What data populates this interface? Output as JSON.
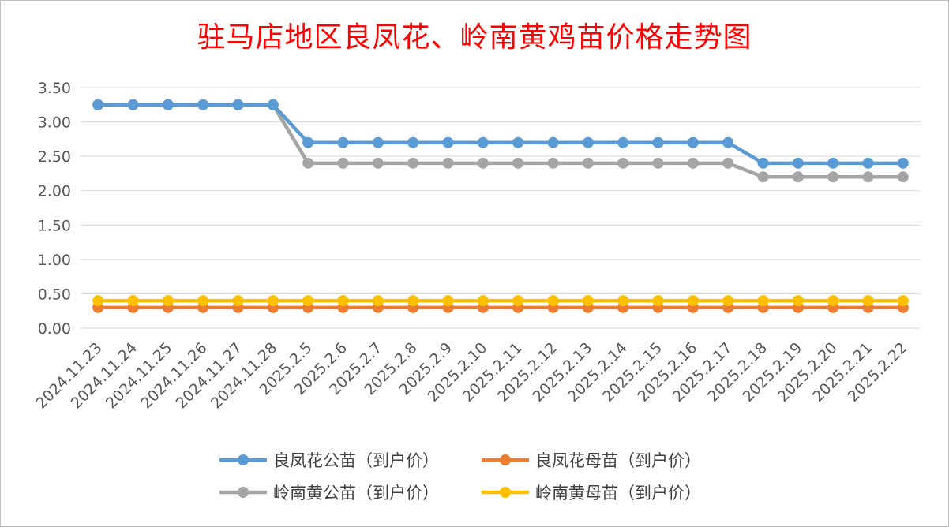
{
  "chart_data": {
    "type": "line",
    "title": "驻马店地区良凤花、岭南黄鸡苗价格走势图",
    "categories": [
      "2024.11.23",
      "2024.11.24",
      "2024.11.25",
      "2024.11.26",
      "2024.11.27",
      "2024.11.28",
      "2025.2.5",
      "2025.2.6",
      "2025.2.7",
      "2025.2.8",
      "2025.2.9",
      "2025.2.10",
      "2025.2.11",
      "2025.2.12",
      "2025.2.13",
      "2025.2.14",
      "2025.2.15",
      "2025.2.16",
      "2025.2.17",
      "2025.2.18",
      "2025.2.19",
      "2025.2.20",
      "2025.2.21",
      "2025.2.22"
    ],
    "ylim": [
      0,
      3.5
    ],
    "yticks": [
      "0.00",
      "0.50",
      "1.00",
      "1.50",
      "2.00",
      "2.50",
      "3.00",
      "3.50"
    ],
    "grid": true,
    "legend_position": "bottom",
    "series": [
      {
        "name": "良凤花公苗（到户价）",
        "color": "#5b9bd5",
        "values": [
          3.25,
          3.25,
          3.25,
          3.25,
          3.25,
          3.25,
          2.7,
          2.7,
          2.7,
          2.7,
          2.7,
          2.7,
          2.7,
          2.7,
          2.7,
          2.7,
          2.7,
          2.7,
          2.7,
          2.4,
          2.4,
          2.4,
          2.4,
          2.4
        ]
      },
      {
        "name": "良凤花母苗（到户价）",
        "color": "#ed7d31",
        "values": [
          0.3,
          0.3,
          0.3,
          0.3,
          0.3,
          0.3,
          0.3,
          0.3,
          0.3,
          0.3,
          0.3,
          0.3,
          0.3,
          0.3,
          0.3,
          0.3,
          0.3,
          0.3,
          0.3,
          0.3,
          0.3,
          0.3,
          0.3,
          0.3
        ]
      },
      {
        "name": "岭南黄公苗（到户价）",
        "color": "#a5a5a5",
        "values": [
          3.25,
          3.25,
          3.25,
          3.25,
          3.25,
          3.25,
          2.4,
          2.4,
          2.4,
          2.4,
          2.4,
          2.4,
          2.4,
          2.4,
          2.4,
          2.4,
          2.4,
          2.4,
          2.4,
          2.2,
          2.2,
          2.2,
          2.2,
          2.2
        ]
      },
      {
        "name": "岭南黄母苗（到户价）",
        "color": "#ffc000",
        "values": [
          0.4,
          0.4,
          0.4,
          0.4,
          0.4,
          0.4,
          0.4,
          0.4,
          0.4,
          0.4,
          0.4,
          0.4,
          0.4,
          0.4,
          0.4,
          0.4,
          0.4,
          0.4,
          0.4,
          0.4,
          0.4,
          0.4,
          0.4,
          0.4
        ]
      }
    ]
  }
}
